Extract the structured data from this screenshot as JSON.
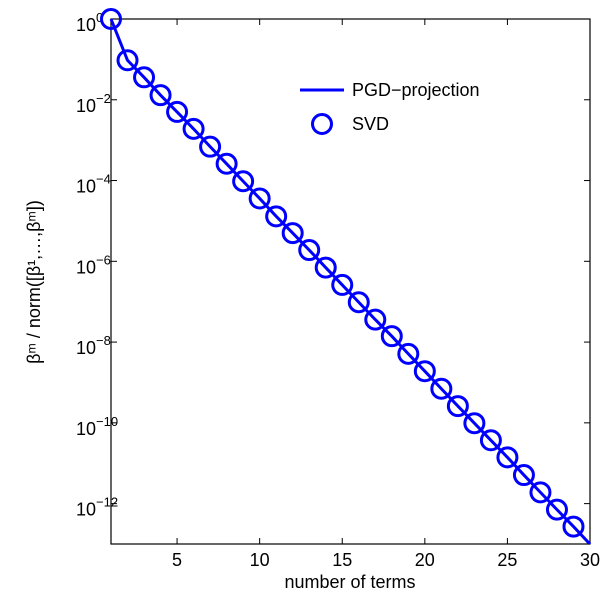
{
  "chart_data": {
    "type": "line",
    "xlabel": "number of terms",
    "ylabel": "βᵐ / norm([β¹,…,βᵐ])",
    "xlim": [
      1,
      30
    ],
    "xticks": [
      5,
      10,
      15,
      20,
      25,
      30
    ],
    "ylim": [
      1e-13,
      1
    ],
    "yticks": [
      {
        "value": 1,
        "label": "10",
        "exponent": "0"
      },
      {
        "value": 0.01,
        "label": "10",
        "exponent": "−2"
      },
      {
        "value": 0.0001,
        "label": "10",
        "exponent": "−4"
      },
      {
        "value": 1e-06,
        "label": "10",
        "exponent": "−6"
      },
      {
        "value": 1e-08,
        "label": "10",
        "exponent": "−8"
      },
      {
        "value": 1e-10,
        "label": "10",
        "exponent": "−10"
      },
      {
        "value": 1e-12,
        "label": "10",
        "exponent": "−12"
      }
    ],
    "yscale": "log",
    "legend": "upper right",
    "series": [
      {
        "name": "PGD−projection",
        "color": "#0000ff",
        "style": "line",
        "x": [
          1,
          2,
          3,
          4,
          5,
          6,
          7,
          8,
          9,
          10,
          11,
          12,
          13,
          14,
          15,
          16,
          17,
          18,
          19,
          20,
          21,
          22,
          23,
          24,
          25,
          26,
          27,
          28,
          29,
          30
        ],
        "values": [
          1,
          0.095,
          0.036,
          0.013,
          0.005,
          0.0019,
          0.00069,
          0.00026,
          9.6e-05,
          3.6e-05,
          1.3e-05,
          5e-06,
          1.9e-06,
          7e-07,
          2.6e-07,
          9.7e-08,
          3.6e-08,
          1.4e-08,
          5.1e-09,
          1.9e-09,
          7e-10,
          2.6e-10,
          9.8e-11,
          3.7e-11,
          1.4e-11,
          5.1e-12,
          1.9e-12,
          7.1e-13,
          2.7e-13,
          9.9e-14
        ]
      },
      {
        "name": "SVD",
        "color": "#0000ff",
        "style": "circle",
        "x": [
          1,
          2,
          3,
          4,
          5,
          6,
          7,
          8,
          9,
          10,
          11,
          12,
          13,
          14,
          15,
          16,
          17,
          18,
          19,
          20,
          21,
          22,
          23,
          24,
          25,
          26,
          27,
          28,
          29
        ],
        "values": [
          1,
          0.095,
          0.036,
          0.013,
          0.005,
          0.0019,
          0.00069,
          0.00026,
          9.6e-05,
          3.6e-05,
          1.3e-05,
          5e-06,
          1.9e-06,
          7e-07,
          2.6e-07,
          9.7e-08,
          3.6e-08,
          1.4e-08,
          5.1e-09,
          1.9e-09,
          7e-10,
          2.6e-10,
          9.8e-11,
          3.7e-11,
          1.4e-11,
          5.1e-12,
          1.9e-12,
          7.1e-13,
          2.7e-13
        ]
      }
    ]
  }
}
